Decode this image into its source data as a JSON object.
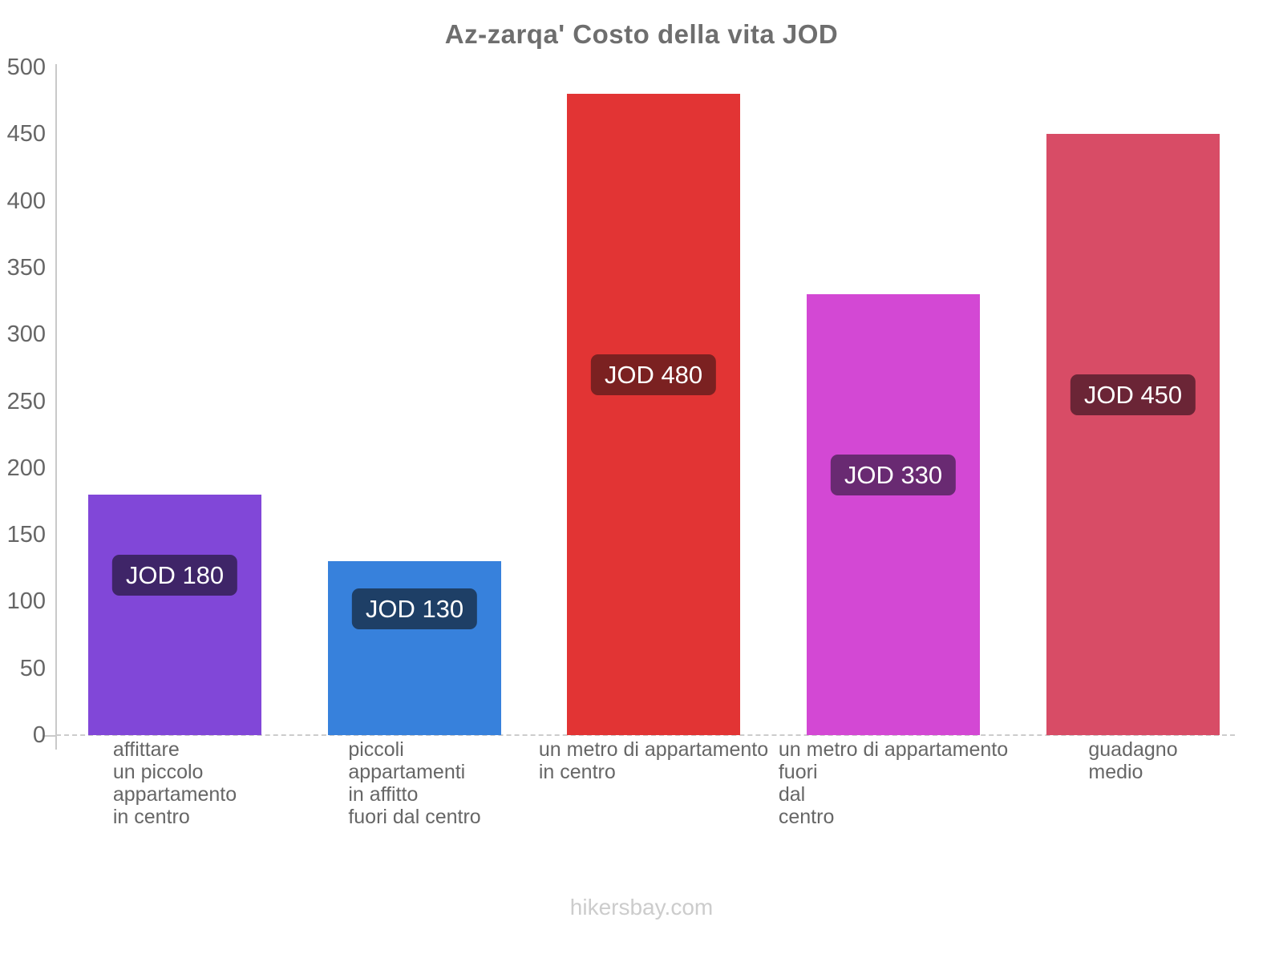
{
  "page": {
    "footer": "hikersbay.com"
  },
  "chart_data": {
    "type": "bar",
    "title": "Az-zarqa' Costo della vita JOD",
    "currency": "JOD",
    "categories": [
      "affittare\nun piccolo\nappartamento\nin centro",
      "piccoli\nappartamenti\nin affitto\nfuori dal centro",
      "un metro di appartamento\nin centro",
      "un metro di appartamento\nfuori\ndal\ncentro",
      "guadagno\nmedio"
    ],
    "values": [
      180,
      130,
      480,
      330,
      450
    ],
    "bar_labels": [
      "JOD 180",
      "JOD 130",
      "JOD 480",
      "JOD 330",
      "JOD 450"
    ],
    "bar_colors": [
      "#8147d8",
      "#3781dc",
      "#e23434",
      "#d348d4",
      "#d84c66"
    ],
    "label_bg_colors": [
      "#3f2568",
      "#1e3f66",
      "#7b2121",
      "#692a72",
      "#6b2536"
    ],
    "xlabel": "",
    "ylabel": "",
    "ylim": [
      0,
      500
    ],
    "yticks": [
      0,
      50,
      100,
      150,
      200,
      250,
      300,
      350,
      400,
      450,
      500
    ],
    "grid": "off",
    "legend": "none",
    "axis_color": "#c9c9c9",
    "tick_text_color": "#666666",
    "title_color": "#6e6e6e",
    "value_text_color": "#ffffff"
  }
}
